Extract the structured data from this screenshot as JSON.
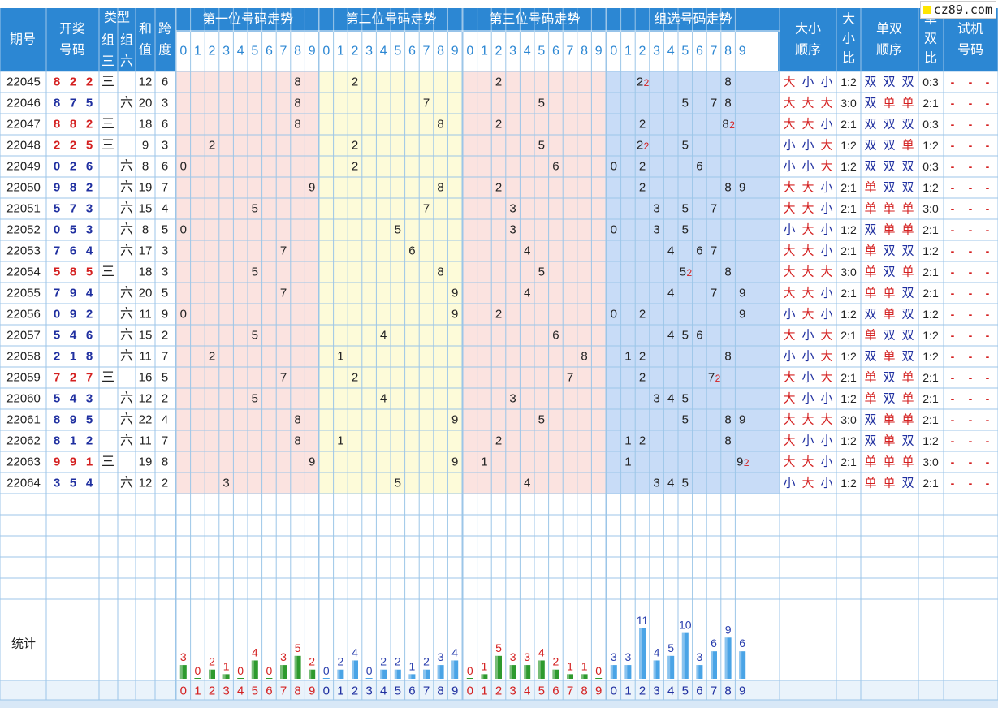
{
  "header": {
    "period": "期号",
    "draw_top": "开奖",
    "draw_bottom": "号码",
    "type": "类型",
    "type_g3_top": "组",
    "type_g3_bottom": "三",
    "type_g6_top": "组",
    "type_g6_bottom": "六",
    "sum_top": "和",
    "sum_bottom": "值",
    "span_top": "跨",
    "span_bottom": "度",
    "pos1": "第一位号码走势",
    "pos2": "第二位号码走势",
    "pos3": "第三位号码走势",
    "group": "组选号码走势",
    "bs_order_top": "大小",
    "bs_order_bottom": "顺序",
    "bs_ratio_1": "大",
    "bs_ratio_2": "小",
    "bs_ratio_3": "比",
    "oe_order_top": "单双",
    "oe_order_bottom": "顺序",
    "oe_ratio_1": "单",
    "oe_ratio_2": "双",
    "oe_ratio_3": "比",
    "trial_top": "试机",
    "trial_bottom": "号码",
    "digits": [
      "0",
      "1",
      "2",
      "3",
      "4",
      "5",
      "6",
      "7",
      "8",
      "9"
    ]
  },
  "rows": [
    {
      "p": "22045",
      "n": [
        "8",
        "2",
        "2"
      ],
      "t": "g3",
      "sum": "12",
      "span": "6",
      "bs": [
        "大",
        "小",
        "小"
      ],
      "bsr": "1:2",
      "oe": [
        "双",
        "双",
        "双"
      ],
      "oer": "0:3"
    },
    {
      "p": "22046",
      "n": [
        "8",
        "7",
        "5"
      ],
      "t": "g6",
      "sum": "20",
      "span": "3",
      "bs": [
        "大",
        "大",
        "大"
      ],
      "bsr": "3:0",
      "oe": [
        "双",
        "单",
        "单"
      ],
      "oer": "2:1"
    },
    {
      "p": "22047",
      "n": [
        "8",
        "8",
        "2"
      ],
      "t": "g3",
      "sum": "18",
      "span": "6",
      "bs": [
        "大",
        "大",
        "小"
      ],
      "bsr": "2:1",
      "oe": [
        "双",
        "双",
        "双"
      ],
      "oer": "0:3"
    },
    {
      "p": "22048",
      "n": [
        "2",
        "2",
        "5"
      ],
      "t": "g3",
      "sum": "9",
      "span": "3",
      "bs": [
        "小",
        "小",
        "大"
      ],
      "bsr": "1:2",
      "oe": [
        "双",
        "双",
        "单"
      ],
      "oer": "1:2"
    },
    {
      "p": "22049",
      "n": [
        "0",
        "2",
        "6"
      ],
      "t": "g6",
      "sum": "8",
      "span": "6",
      "bs": [
        "小",
        "小",
        "大"
      ],
      "bsr": "1:2",
      "oe": [
        "双",
        "双",
        "双"
      ],
      "oer": "0:3"
    },
    {
      "p": "22050",
      "n": [
        "9",
        "8",
        "2"
      ],
      "t": "g6",
      "sum": "19",
      "span": "7",
      "bs": [
        "大",
        "大",
        "小"
      ],
      "bsr": "2:1",
      "oe": [
        "单",
        "双",
        "双"
      ],
      "oer": "1:2"
    },
    {
      "p": "22051",
      "n": [
        "5",
        "7",
        "3"
      ],
      "t": "g6",
      "sum": "15",
      "span": "4",
      "bs": [
        "大",
        "大",
        "小"
      ],
      "bsr": "2:1",
      "oe": [
        "单",
        "单",
        "单"
      ],
      "oer": "3:0"
    },
    {
      "p": "22052",
      "n": [
        "0",
        "5",
        "3"
      ],
      "t": "g6",
      "sum": "8",
      "span": "5",
      "bs": [
        "小",
        "大",
        "小"
      ],
      "bsr": "1:2",
      "oe": [
        "双",
        "单",
        "单"
      ],
      "oer": "2:1"
    },
    {
      "p": "22053",
      "n": [
        "7",
        "6",
        "4"
      ],
      "t": "g6",
      "sum": "17",
      "span": "3",
      "bs": [
        "大",
        "大",
        "小"
      ],
      "bsr": "2:1",
      "oe": [
        "单",
        "双",
        "双"
      ],
      "oer": "1:2"
    },
    {
      "p": "22054",
      "n": [
        "5",
        "8",
        "5"
      ],
      "t": "g3",
      "sum": "18",
      "span": "3",
      "bs": [
        "大",
        "大",
        "大"
      ],
      "bsr": "3:0",
      "oe": [
        "单",
        "双",
        "单"
      ],
      "oer": "2:1"
    },
    {
      "p": "22055",
      "n": [
        "7",
        "9",
        "4"
      ],
      "t": "g6",
      "sum": "20",
      "span": "5",
      "bs": [
        "大",
        "大",
        "小"
      ],
      "bsr": "2:1",
      "oe": [
        "单",
        "单",
        "双"
      ],
      "oer": "2:1"
    },
    {
      "p": "22056",
      "n": [
        "0",
        "9",
        "2"
      ],
      "t": "g6",
      "sum": "11",
      "span": "9",
      "bs": [
        "小",
        "大",
        "小"
      ],
      "bsr": "1:2",
      "oe": [
        "双",
        "单",
        "双"
      ],
      "oer": "1:2"
    },
    {
      "p": "22057",
      "n": [
        "5",
        "4",
        "6"
      ],
      "t": "g6",
      "sum": "15",
      "span": "2",
      "bs": [
        "大",
        "小",
        "大"
      ],
      "bsr": "2:1",
      "oe": [
        "单",
        "双",
        "双"
      ],
      "oer": "1:2"
    },
    {
      "p": "22058",
      "n": [
        "2",
        "1",
        "8"
      ],
      "t": "g6",
      "sum": "11",
      "span": "7",
      "bs": [
        "小",
        "小",
        "大"
      ],
      "bsr": "1:2",
      "oe": [
        "双",
        "单",
        "双"
      ],
      "oer": "1:2"
    },
    {
      "p": "22059",
      "n": [
        "7",
        "2",
        "7"
      ],
      "t": "g3",
      "sum": "16",
      "span": "5",
      "bs": [
        "大",
        "小",
        "大"
      ],
      "bsr": "2:1",
      "oe": [
        "单",
        "双",
        "单"
      ],
      "oer": "2:1"
    },
    {
      "p": "22060",
      "n": [
        "5",
        "4",
        "3"
      ],
      "t": "g6",
      "sum": "12",
      "span": "2",
      "bs": [
        "大",
        "小",
        "小"
      ],
      "bsr": "1:2",
      "oe": [
        "单",
        "双",
        "单"
      ],
      "oer": "2:1"
    },
    {
      "p": "22061",
      "n": [
        "8",
        "9",
        "5"
      ],
      "t": "g6",
      "sum": "22",
      "span": "4",
      "bs": [
        "大",
        "大",
        "大"
      ],
      "bsr": "3:0",
      "oe": [
        "双",
        "单",
        "单"
      ],
      "oer": "2:1"
    },
    {
      "p": "22062",
      "n": [
        "8",
        "1",
        "2"
      ],
      "t": "g6",
      "sum": "11",
      "span": "7",
      "bs": [
        "大",
        "小",
        "小"
      ],
      "bsr": "1:2",
      "oe": [
        "双",
        "单",
        "双"
      ],
      "oer": "1:2"
    },
    {
      "p": "22063",
      "n": [
        "9",
        "9",
        "1"
      ],
      "t": "g3",
      "sum": "19",
      "span": "8",
      "bs": [
        "大",
        "大",
        "小"
      ],
      "bsr": "2:1",
      "oe": [
        "单",
        "单",
        "单"
      ],
      "oer": "3:0"
    },
    {
      "p": "22064",
      "n": [
        "3",
        "5",
        "4"
      ],
      "t": "g6",
      "sum": "12",
      "span": "2",
      "bs": [
        "小",
        "大",
        "小"
      ],
      "bsr": "1:2",
      "oe": [
        "单",
        "单",
        "双"
      ],
      "oer": "2:1"
    }
  ],
  "type_labels": {
    "g3": "三",
    "g6": "六"
  },
  "trial_placeholder": "-",
  "stats": {
    "label": "统计",
    "pos1": [
      3,
      0,
      2,
      1,
      0,
      4,
      0,
      3,
      5,
      2
    ],
    "pos2": [
      0,
      2,
      4,
      0,
      2,
      2,
      1,
      2,
      3,
      4
    ],
    "pos3": [
      0,
      1,
      5,
      3,
      3,
      4,
      2,
      1,
      1,
      0
    ],
    "group": [
      3,
      3,
      11,
      4,
      5,
      10,
      3,
      6,
      9,
      6
    ]
  },
  "chart_data": {
    "type": "bar",
    "title": "统计",
    "categories": [
      "0",
      "1",
      "2",
      "3",
      "4",
      "5",
      "6",
      "7",
      "8",
      "9"
    ],
    "series": [
      {
        "name": "第一位号码走势",
        "values": [
          3,
          0,
          2,
          1,
          0,
          4,
          0,
          3,
          5,
          2
        ]
      },
      {
        "name": "第二位号码走势",
        "values": [
          0,
          2,
          4,
          0,
          2,
          2,
          1,
          2,
          3,
          4
        ]
      },
      {
        "name": "第三位号码走势",
        "values": [
          0,
          1,
          5,
          3,
          3,
          4,
          2,
          1,
          1,
          0
        ]
      },
      {
        "name": "组选号码走势",
        "values": [
          3,
          3,
          11,
          4,
          5,
          10,
          3,
          6,
          9,
          6
        ]
      }
    ]
  },
  "watermark": "cz89.com",
  "colors": {
    "header_bg": "#2c87d3",
    "grid": "#9cc6e8",
    "pos1_bg": "#fbe3e0",
    "pos2_bg": "#fdfbd9",
    "pos3_bg": "#fbe3e0",
    "group_bg": "#c8dcf7",
    "red": "#d42020",
    "blue": "#1f2fa0",
    "bar_green": "#2e9a2e",
    "bar_blue": "#4aa4e6",
    "label_red": "#d42020",
    "label_blue": "#2a3fae"
  }
}
